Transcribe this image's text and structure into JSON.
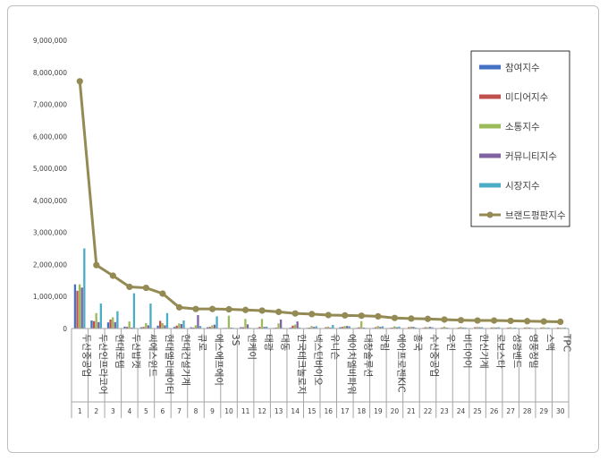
{
  "chart_data": {
    "type": "bar",
    "title": "",
    "xlabel": "",
    "ylabel": "",
    "ylim": [
      0,
      9000000
    ],
    "yticks": [
      "0",
      "1,000,000",
      "2,000,000",
      "3,000,000",
      "4,000,000",
      "5,000,000",
      "6,000,000",
      "7,000,000",
      "8,000,000",
      "9,000,000"
    ],
    "grid": false,
    "legend_position": "top-right",
    "ranks": [
      "1",
      "2",
      "3",
      "4",
      "5",
      "6",
      "7",
      "8",
      "9",
      "10",
      "11",
      "12",
      "13",
      "14",
      "15",
      "16",
      "17",
      "18",
      "19",
      "20",
      "21",
      "22",
      "23",
      "24",
      "25",
      "26",
      "27",
      "28",
      "29",
      "30"
    ],
    "categories": [
      "두산중공업",
      "두산인프라코어",
      "현대로템",
      "두산밥캣",
      "씨에스윈드",
      "현대엘리베이터",
      "현대건설기계",
      "큐로",
      "에스에프에이",
      "3S",
      "엔케이",
      "태광",
      "대동",
      "한국테크놀로지",
      "넥스턴바이오",
      "유니슨",
      "에이치엘비파워",
      "대창솔루션",
      "광림",
      "에이프로젠KIC",
      "흥국",
      "수산중공업",
      "우진",
      "비디아이",
      "한신기계",
      "로보스타",
      "성광벤드",
      "영풍정밀",
      "스맥",
      "TPC"
    ],
    "series": [
      {
        "name": "참여지수",
        "color": "#4472c4",
        "values": [
          1380000,
          250000,
          190000,
          60000,
          40000,
          90000,
          50000,
          40000,
          40000,
          20000,
          40000,
          20000,
          20000,
          30000,
          20000,
          10000,
          40000,
          20000,
          20000,
          20000,
          10000,
          20000,
          10000,
          10000,
          10000,
          10000,
          10000,
          10000,
          10000,
          10000
        ]
      },
      {
        "name": "미디어지수",
        "color": "#c0504d",
        "values": [
          1180000,
          230000,
          280000,
          50000,
          50000,
          240000,
          90000,
          30000,
          50000,
          20000,
          40000,
          50000,
          30000,
          90000,
          30000,
          40000,
          50000,
          40000,
          40000,
          30000,
          40000,
          40000,
          30000,
          30000,
          40000,
          30000,
          30000,
          30000,
          30000,
          30000
        ]
      },
      {
        "name": "소통지수",
        "color": "#9bbb59",
        "values": [
          1380000,
          480000,
          350000,
          220000,
          170000,
          170000,
          160000,
          100000,
          100000,
          400000,
          300000,
          300000,
          160000,
          120000,
          80000,
          60000,
          80000,
          230000,
          80000,
          70000,
          60000,
          40000,
          60000,
          50000,
          50000,
          40000,
          40000,
          40000,
          40000,
          30000
        ]
      },
      {
        "name": "커뮤니티지수",
        "color": "#8064a2",
        "values": [
          1280000,
          200000,
          200000,
          30000,
          100000,
          100000,
          140000,
          420000,
          120000,
          30000,
          130000,
          50000,
          280000,
          220000,
          50000,
          30000,
          80000,
          30000,
          50000,
          40000,
          50000,
          50000,
          30000,
          30000,
          40000,
          30000,
          20000,
          30000,
          20000,
          20000
        ]
      },
      {
        "name": "시장지수",
        "color": "#4bacc6",
        "values": [
          2500000,
          780000,
          540000,
          1100000,
          780000,
          480000,
          250000,
          80000,
          380000,
          20000,
          20000,
          60000,
          20000,
          30000,
          70000,
          110000,
          70000,
          20000,
          70000,
          60000,
          30000,
          40000,
          20000,
          30000,
          40000,
          40000,
          30000,
          20000,
          30000,
          30000
        ]
      }
    ],
    "line_series": {
      "name": "브랜드평판지수",
      "color": "#948a54",
      "values": [
        7720000,
        1980000,
        1650000,
        1300000,
        1270000,
        1090000,
        660000,
        610000,
        610000,
        600000,
        580000,
        560000,
        520000,
        470000,
        450000,
        420000,
        410000,
        400000,
        380000,
        330000,
        310000,
        300000,
        280000,
        260000,
        250000,
        250000,
        240000,
        230000,
        220000,
        210000
      ]
    }
  }
}
